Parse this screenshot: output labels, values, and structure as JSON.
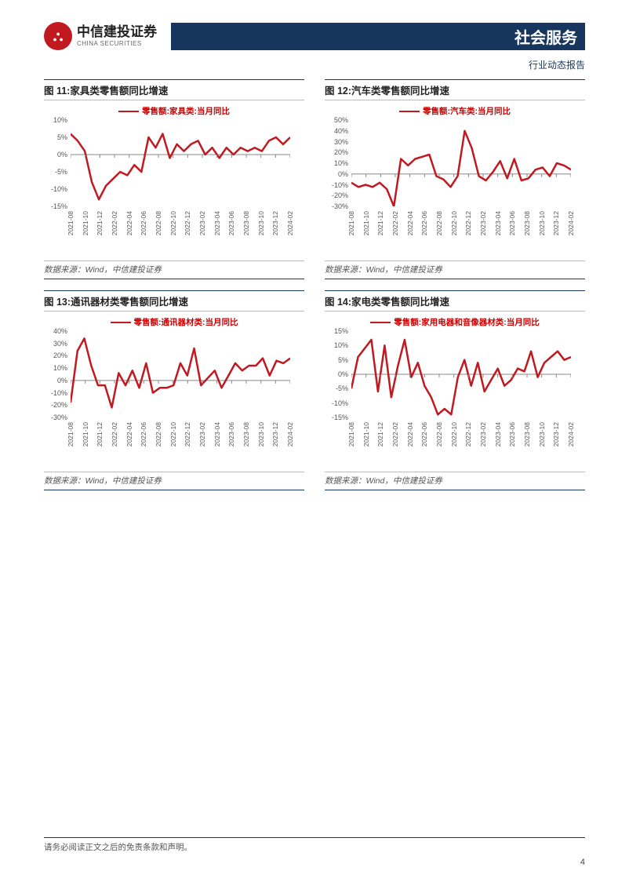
{
  "header": {
    "logo_cn": "中信建投证券",
    "logo_en": "CHINA SECURITIES",
    "logo_mark": "⛬",
    "section": "社会服务",
    "subtitle": "行业动态报告"
  },
  "x_labels": [
    "2021-08",
    "2021-10",
    "2021-12",
    "2022-02",
    "2022-04",
    "2022-06",
    "2022-08",
    "2022-10",
    "2022-12",
    "2023-02",
    "2023-04",
    "2023-06",
    "2023-08",
    "2023-10",
    "2023-12",
    "2024-02"
  ],
  "charts": [
    {
      "id": "c11",
      "title": "图 11:家具类零售额同比增速",
      "legend": "零售额:家具类:当月同比",
      "line_color": "#c01920",
      "line_width": 2.5,
      "background_color": "#ffffff",
      "axis_color": "#888888",
      "tick_fontsize": 9,
      "ylim": [
        -15,
        10
      ],
      "ytick_step": 5,
      "yticks": [
        "10%",
        "5%",
        "0%",
        "-5%",
        "-10%",
        "-15%"
      ],
      "values": [
        6,
        4,
        1,
        -8,
        -13,
        -9,
        -7,
        -5,
        -6,
        -3,
        -5,
        5,
        2,
        6,
        -1,
        3,
        1,
        3,
        4,
        0,
        2,
        -1,
        2,
        0,
        2,
        1,
        2,
        1,
        4,
        5,
        3,
        5
      ],
      "source": "数据来源：Wind，中信建投证券"
    },
    {
      "id": "c12",
      "title": "图 12:汽车类零售额同比增速",
      "legend": "零售额:汽车类:当月同比",
      "line_color": "#c01920",
      "line_width": 2.5,
      "background_color": "#ffffff",
      "axis_color": "#888888",
      "tick_fontsize": 9,
      "ylim": [
        -30,
        50
      ],
      "ytick_step": 10,
      "yticks": [
        "50%",
        "40%",
        "30%",
        "20%",
        "10%",
        "0%",
        "-10%",
        "-20%",
        "-30%"
      ],
      "values": [
        -8,
        -12,
        -10,
        -12,
        -8,
        -14,
        -30,
        14,
        8,
        14,
        16,
        18,
        -2,
        -5,
        -12,
        -2,
        40,
        24,
        -2,
        -6,
        2,
        12,
        -4,
        14,
        -6,
        -4,
        4,
        6,
        -2,
        10,
        8,
        4
      ],
      "source": "数据来源：Wind，中信建投证券"
    },
    {
      "id": "c13",
      "title": "图 13:通讯器材类零售额同比增速",
      "legend": "零售额:通讯器材类:当月同比",
      "line_color": "#c01920",
      "line_width": 2.5,
      "background_color": "#ffffff",
      "axis_color": "#888888",
      "tick_fontsize": 9,
      "ylim": [
        -30,
        40
      ],
      "ytick_step": 10,
      "yticks": [
        "40%",
        "30%",
        "20%",
        "10%",
        "0%",
        "-10%",
        "-20%",
        "-30%"
      ],
      "values": [
        -18,
        24,
        34,
        12,
        -4,
        -4,
        -22,
        6,
        -4,
        8,
        -6,
        14,
        -10,
        -6,
        -6,
        -4,
        14,
        4,
        26,
        -4,
        2,
        8,
        -6,
        4,
        14,
        8,
        12,
        12,
        18,
        4,
        16,
        14,
        18
      ],
      "source": "数据来源：Wind，中信建投证券"
    },
    {
      "id": "c14",
      "title": "图 14:家电类零售额同比增速",
      "legend": "零售额:家用电器和音像器材类:当月同比",
      "line_color": "#c01920",
      "line_width": 2.5,
      "background_color": "#ffffff",
      "axis_color": "#888888",
      "tick_fontsize": 9,
      "ylim": [
        -15,
        15
      ],
      "ytick_step": 5,
      "yticks": [
        "15%",
        "10%",
        "5%",
        "0%",
        "-5%",
        "-10%",
        "-15%"
      ],
      "values": [
        -5,
        6,
        9,
        12,
        -6,
        10,
        -8,
        3,
        12,
        -1,
        4,
        -4,
        -8,
        -14,
        -12,
        -14,
        -1,
        5,
        -4,
        4,
        -6,
        -2,
        2,
        -4,
        -2,
        2,
        1,
        8,
        -1,
        4,
        6,
        8,
        5,
        6
      ],
      "source": "数据来源：Wind，中信建投证券"
    }
  ],
  "footer": {
    "disclaimer": "请务必阅读正文之后的免责条款和声明。",
    "page": "4"
  }
}
